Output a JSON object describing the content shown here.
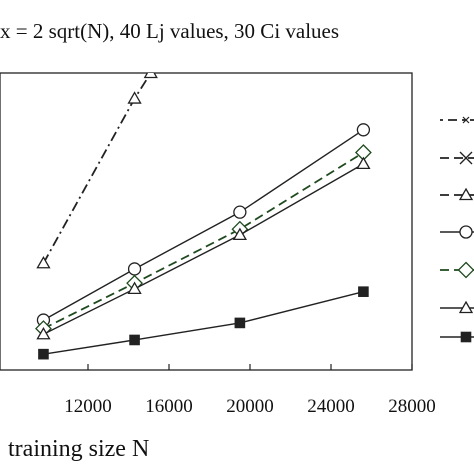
{
  "chart_data": {
    "type": "line",
    "title": "x = 2 sqrt(N), 40 Lj values, 30 Ci values",
    "xlabel": "training size N",
    "ylabel": "",
    "xlim": [
      8000,
      28000
    ],
    "ylim": [
      0,
      100
    ],
    "xticks": [
      12000,
      16000,
      20000,
      24000,
      28000
    ],
    "xtick_labels": [
      "12000",
      "16000",
      "20000",
      "24000",
      "28000"
    ],
    "grid": false,
    "legend_position": "right",
    "series": [
      {
        "color": "#222222",
        "line": "dashdot",
        "marker": "triangle",
        "legend_line": "dotdash",
        "legend_marker": "x",
        "x": [
          9800,
          14300,
          15100
        ],
        "y": [
          33,
          91,
          100
        ]
      },
      {
        "color": "#222222",
        "line": "none",
        "marker": "none",
        "legend_line": "dashed",
        "legend_marker": "cross",
        "x": [],
        "y": []
      },
      {
        "color": "#222222",
        "line": "none",
        "marker": "none",
        "legend_line": "dashed",
        "legend_marker": "triangle",
        "x": [],
        "y": []
      },
      {
        "color": "#222222",
        "line": "solid",
        "marker": "circle",
        "legend_line": "solid",
        "legend_marker": "circle",
        "x": [
          9800,
          14300,
          19500,
          25600
        ],
        "y": [
          13,
          31,
          51,
          80
        ]
      },
      {
        "color": "#1f4a1f",
        "line": "dashed",
        "marker": "diamond",
        "legend_line": "dashed",
        "legend_marker": "diamond",
        "x": [
          9800,
          14300,
          19500,
          25600
        ],
        "y": [
          10,
          26,
          45,
          72
        ]
      },
      {
        "color": "#222222",
        "line": "solid",
        "marker": "triangle",
        "legend_line": "solid",
        "legend_marker": "triangle",
        "x": [
          9800,
          14300,
          19500,
          25600
        ],
        "y": [
          8,
          24,
          43,
          68
        ]
      },
      {
        "color": "#222222",
        "line": "solid",
        "marker": "square",
        "legend_line": "solid",
        "legend_marker": "square",
        "x": [
          9800,
          14300,
          19500,
          25600
        ],
        "y": [
          1,
          6,
          12,
          23
        ]
      }
    ]
  }
}
